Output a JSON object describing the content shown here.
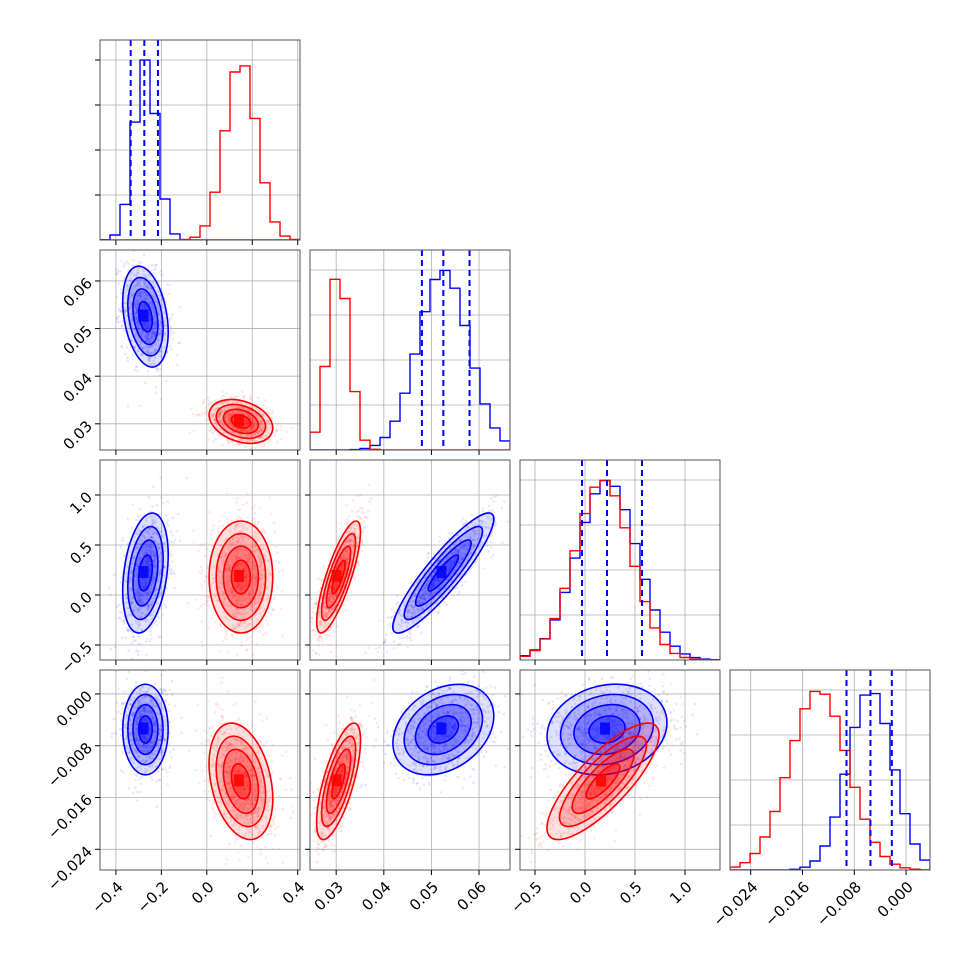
{
  "chart_data": {
    "type": "corner",
    "grid": true,
    "parameters": [
      {
        "range": [
          -0.47,
          0.41
        ],
        "ticks": [
          -0.4,
          -0.2,
          0.0,
          0.2,
          0.4
        ],
        "tick_labels": [
          "−0.4",
          "−0.2",
          "0.0",
          "0.2",
          "0.4"
        ]
      },
      {
        "range": [
          0.0245,
          0.0665
        ],
        "ticks": [
          0.03,
          0.04,
          0.05,
          0.06
        ],
        "tick_labels": [
          "0.03",
          "0.04",
          "0.05",
          "0.06"
        ]
      },
      {
        "range": [
          -0.65,
          1.35
        ],
        "ticks": [
          -0.5,
          0.0,
          0.5,
          1.0
        ],
        "tick_labels": [
          "−0.5",
          "0.0",
          "0.5",
          "1.0"
        ]
      },
      {
        "range": [
          -0.0272,
          0.0037
        ],
        "ticks": [
          -0.024,
          -0.016,
          -0.008,
          0.0
        ],
        "tick_labels": [
          "−0.024",
          "−0.016",
          "−0.008",
          "0.000"
        ]
      }
    ],
    "series": [
      {
        "color": "#0000ff",
        "mean": [
          -0.27,
          0.0525,
          0.22,
          -0.0055
        ],
        "std": [
          0.05,
          0.0053,
          0.3,
          0.0035
        ]
      },
      {
        "color": "#ff0000",
        "mean": [
          0.15,
          0.0305,
          0.18,
          -0.0135
        ],
        "std": [
          0.07,
          0.0023,
          0.28,
          0.0045
        ]
      }
    ],
    "pair_correlations": {
      "blue": {
        "0-1": -0.3,
        "0-2": 0.3,
        "1-2": 0.9,
        "0-3": 0.0,
        "1-3": 0.3,
        "2-3": 0.15
      },
      "red": {
        "0-1": -0.3,
        "0-2": 0.0,
        "1-2": 0.8,
        "0-3": -0.3,
        "1-3": 0.7,
        "2-3": 0.8
      }
    },
    "quantile_lines": [
      [
        -0.335,
        -0.275,
        -0.215
      ],
      [
        0.048,
        0.0525,
        0.058
      ],
      [
        -0.03,
        0.22,
        0.57
      ],
      [
        -0.0092,
        -0.0055,
        -0.0022
      ]
    ],
    "quantile_line_color": "#0000ff",
    "contour_levels": 4
  }
}
